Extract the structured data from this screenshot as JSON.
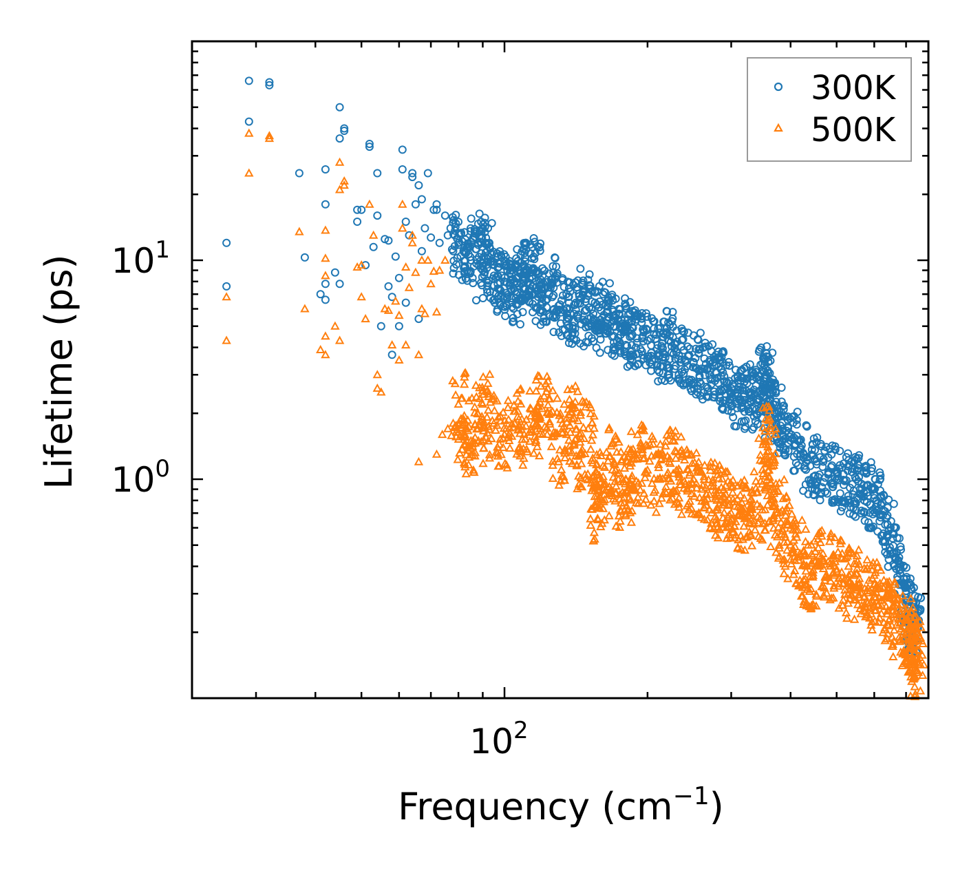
{
  "chart_data": {
    "type": "scatter",
    "title": "",
    "xlabel": "Frequency (cm",
    "xlabel_sup": "−1",
    "xlabel_end": ")",
    "ylabel": "Lifetime (ps)",
    "xscale": "log",
    "yscale": "log",
    "xlim": [
      22,
      780
    ],
    "ylim": [
      0.1,
      100
    ],
    "x_ticks": [
      {
        "value": 100,
        "base": "10",
        "exp": "2"
      }
    ],
    "y_ticks": [
      {
        "value": 1,
        "base": "10",
        "exp": "0"
      },
      {
        "value": 10,
        "base": "10",
        "exp": "1"
      }
    ],
    "legend": {
      "position": "top-right",
      "entries": [
        {
          "label": "300K",
          "marker": "circle",
          "color": "#1f77b4"
        },
        {
          "label": "500K",
          "marker": "triangle",
          "color": "#ff7f0e"
        }
      ]
    },
    "series": [
      {
        "name": "300K",
        "marker": "circle",
        "color": "#1f77b4",
        "points": [
          [
            26,
            12
          ],
          [
            26,
            7.6
          ],
          [
            29,
            66
          ],
          [
            29,
            43
          ],
          [
            32,
            65
          ],
          [
            32,
            63
          ],
          [
            37,
            25
          ],
          [
            38,
            10.3
          ],
          [
            41,
            7
          ],
          [
            42,
            26
          ],
          [
            42,
            18
          ],
          [
            42,
            7.8
          ],
          [
            42,
            6.6
          ],
          [
            44,
            8.8
          ],
          [
            45,
            50
          ],
          [
            45,
            36
          ],
          [
            45,
            7.8
          ],
          [
            46,
            39
          ],
          [
            46,
            40
          ],
          [
            49,
            17
          ],
          [
            49,
            15
          ],
          [
            50,
            17
          ],
          [
            51,
            9.5
          ],
          [
            52,
            34
          ],
          [
            52,
            33
          ],
          [
            53,
            11.5
          ],
          [
            54,
            25
          ],
          [
            54,
            16
          ],
          [
            55,
            5
          ],
          [
            56,
            12.5
          ],
          [
            57,
            12.3
          ],
          [
            57,
            7.6
          ],
          [
            58,
            6.8
          ],
          [
            58,
            3.7
          ],
          [
            59,
            10.4
          ],
          [
            60,
            8.3
          ],
          [
            60,
            5
          ],
          [
            61,
            32
          ],
          [
            61,
            26
          ],
          [
            62,
            15
          ],
          [
            62,
            6.4
          ],
          [
            63,
            13
          ],
          [
            64,
            25
          ],
          [
            64,
            24
          ],
          [
            65,
            18
          ],
          [
            66,
            22
          ],
          [
            66,
            5.4
          ],
          [
            67,
            19
          ],
          [
            67,
            11
          ],
          [
            68,
            14
          ],
          [
            69,
            25
          ],
          [
            70,
            12.7
          ],
          [
            71,
            17
          ],
          [
            72,
            18
          ],
          [
            72,
            17
          ],
          [
            73,
            12
          ],
          [
            75,
            16
          ],
          [
            76,
            13
          ],
          [
            77,
            14
          ],
          [
            78,
            11
          ],
          [
            80,
            12
          ],
          [
            82,
            11
          ],
          [
            85,
            10
          ],
          [
            88,
            12
          ],
          [
            90,
            9
          ],
          [
            92,
            11
          ],
          [
            95,
            8.5
          ],
          [
            98,
            7.9
          ],
          [
            100,
            8
          ],
          [
            103,
            7.4
          ],
          [
            106,
            7
          ],
          [
            108,
            9
          ],
          [
            110,
            8.8
          ],
          [
            112,
            7.9
          ],
          [
            115,
            9.2
          ],
          [
            118,
            7
          ],
          [
            120,
            6.7
          ],
          [
            125,
            7.5
          ],
          [
            130,
            6.2
          ],
          [
            135,
            6
          ],
          [
            140,
            5.7
          ],
          [
            145,
            6.7
          ],
          [
            150,
            5.4
          ],
          [
            155,
            6.4
          ],
          [
            160,
            5.2
          ],
          [
            165,
            5.8
          ],
          [
            170,
            5
          ],
          [
            175,
            4.9
          ],
          [
            180,
            4.8
          ],
          [
            185,
            4.5
          ],
          [
            190,
            4.4
          ],
          [
            200,
            4.3
          ],
          [
            210,
            4.1
          ],
          [
            215,
            3.6
          ],
          [
            222,
            4.3
          ],
          [
            230,
            3.8
          ],
          [
            240,
            3.5
          ],
          [
            250,
            3.4
          ],
          [
            260,
            3.2
          ],
          [
            270,
            3
          ],
          [
            280,
            2.9
          ],
          [
            290,
            2.8
          ],
          [
            300,
            2.6
          ],
          [
            310,
            2.4
          ],
          [
            320,
            2.3
          ],
          [
            330,
            2.5
          ],
          [
            340,
            2.3
          ],
          [
            350,
            2.7
          ],
          [
            355,
            3
          ],
          [
            360,
            2.7
          ],
          [
            365,
            2.1
          ],
          [
            375,
            1.9
          ],
          [
            385,
            1.7
          ],
          [
            400,
            1.5
          ],
          [
            420,
            1.3
          ],
          [
            440,
            1.15
          ],
          [
            460,
            1.05
          ],
          [
            480,
            1.05
          ],
          [
            500,
            1
          ],
          [
            520,
            0.98
          ],
          [
            540,
            0.95
          ],
          [
            560,
            0.9
          ],
          [
            580,
            0.87
          ],
          [
            600,
            0.82
          ],
          [
            620,
            0.76
          ],
          [
            640,
            0.62
          ],
          [
            660,
            0.46
          ],
          [
            680,
            0.37
          ],
          [
            700,
            0.3
          ],
          [
            710,
            0.26
          ],
          [
            720,
            0.24
          ],
          [
            730,
            0.22
          ]
        ]
      },
      {
        "name": "500K",
        "marker": "triangle",
        "color": "#ff7f0e",
        "points": [
          [
            26,
            6.8
          ],
          [
            26,
            4.3
          ],
          [
            29,
            38
          ],
          [
            29,
            25
          ],
          [
            32,
            37
          ],
          [
            32,
            36
          ],
          [
            37,
            13.5
          ],
          [
            38,
            6
          ],
          [
            41,
            3.9
          ],
          [
            42,
            13.7
          ],
          [
            42,
            10.2
          ],
          [
            42,
            8.5
          ],
          [
            42,
            4.5
          ],
          [
            42,
            3.7
          ],
          [
            44,
            5
          ],
          [
            45,
            28
          ],
          [
            45,
            21
          ],
          [
            45,
            4.3
          ],
          [
            46,
            22
          ],
          [
            46,
            23
          ],
          [
            49,
            9.3
          ],
          [
            50,
            9.5
          ],
          [
            50,
            6.8
          ],
          [
            51,
            5.4
          ],
          [
            52,
            18
          ],
          [
            53,
            13
          ],
          [
            54,
            3
          ],
          [
            54,
            2.6
          ],
          [
            55,
            2.5
          ],
          [
            56,
            6
          ],
          [
            57,
            5.9
          ],
          [
            58,
            4.1
          ],
          [
            59,
            6.5
          ],
          [
            60,
            5.6
          ],
          [
            60,
            3.5
          ],
          [
            61,
            18
          ],
          [
            61,
            14
          ],
          [
            62,
            9.3
          ],
          [
            62,
            4.1
          ],
          [
            63,
            7.5
          ],
          [
            64,
            12
          ],
          [
            64,
            13
          ],
          [
            65,
            8.8
          ],
          [
            66,
            1.2
          ],
          [
            66,
            3.7
          ],
          [
            67,
            10
          ],
          [
            67,
            6
          ],
          [
            68,
            5.7
          ],
          [
            69,
            10
          ],
          [
            70,
            7.8
          ],
          [
            71,
            8.9
          ],
          [
            72,
            5.8
          ],
          [
            72,
            1.3
          ],
          [
            73,
            9
          ],
          [
            74,
            1.6
          ],
          [
            75,
            10
          ],
          [
            76,
            1.7
          ],
          [
            78,
            1.8
          ],
          [
            80,
            2.2
          ],
          [
            82,
            1.6
          ],
          [
            85,
            1.5
          ],
          [
            88,
            1.7
          ],
          [
            90,
            2.2
          ],
          [
            95,
            1.8
          ],
          [
            100,
            1.6
          ],
          [
            105,
            1.8
          ],
          [
            110,
            1.6
          ],
          [
            115,
            1.8
          ],
          [
            120,
            2.1
          ],
          [
            125,
            2
          ],
          [
            130,
            1.2
          ],
          [
            135,
            1.6
          ],
          [
            140,
            1.9
          ],
          [
            145,
            1.3
          ],
          [
            150,
            1.7
          ],
          [
            155,
            0.75
          ],
          [
            158,
            0.9
          ],
          [
            162,
            0.95
          ],
          [
            170,
            1.2
          ],
          [
            175,
            0.85
          ],
          [
            180,
            1
          ],
          [
            185,
            0.9
          ],
          [
            190,
            1.25
          ],
          [
            200,
            1.1
          ],
          [
            210,
            1
          ],
          [
            222,
            1.2
          ],
          [
            230,
            1.1
          ],
          [
            240,
            0.95
          ],
          [
            250,
            1
          ],
          [
            260,
            0.9
          ],
          [
            270,
            0.85
          ],
          [
            280,
            0.8
          ],
          [
            290,
            0.78
          ],
          [
            300,
            0.7
          ],
          [
            310,
            0.75
          ],
          [
            320,
            0.66
          ],
          [
            330,
            0.7
          ],
          [
            345,
            0.75
          ],
          [
            355,
            1.5
          ],
          [
            360,
            1.2
          ],
          [
            365,
            0.9
          ],
          [
            375,
            0.7
          ],
          [
            385,
            0.58
          ],
          [
            400,
            0.5
          ],
          [
            420,
            0.45
          ],
          [
            430,
            0.35
          ],
          [
            440,
            0.36
          ],
          [
            460,
            0.4
          ],
          [
            480,
            0.42
          ],
          [
            500,
            0.38
          ],
          [
            520,
            0.35
          ],
          [
            540,
            0.33
          ],
          [
            560,
            0.32
          ],
          [
            580,
            0.31
          ],
          [
            600,
            0.29
          ],
          [
            620,
            0.28
          ],
          [
            640,
            0.25
          ],
          [
            660,
            0.24
          ],
          [
            680,
            0.22
          ],
          [
            700,
            0.2
          ],
          [
            710,
            0.18
          ],
          [
            720,
            0.17
          ],
          [
            730,
            0.16
          ],
          [
            740,
            0.145
          ]
        ]
      }
    ]
  }
}
